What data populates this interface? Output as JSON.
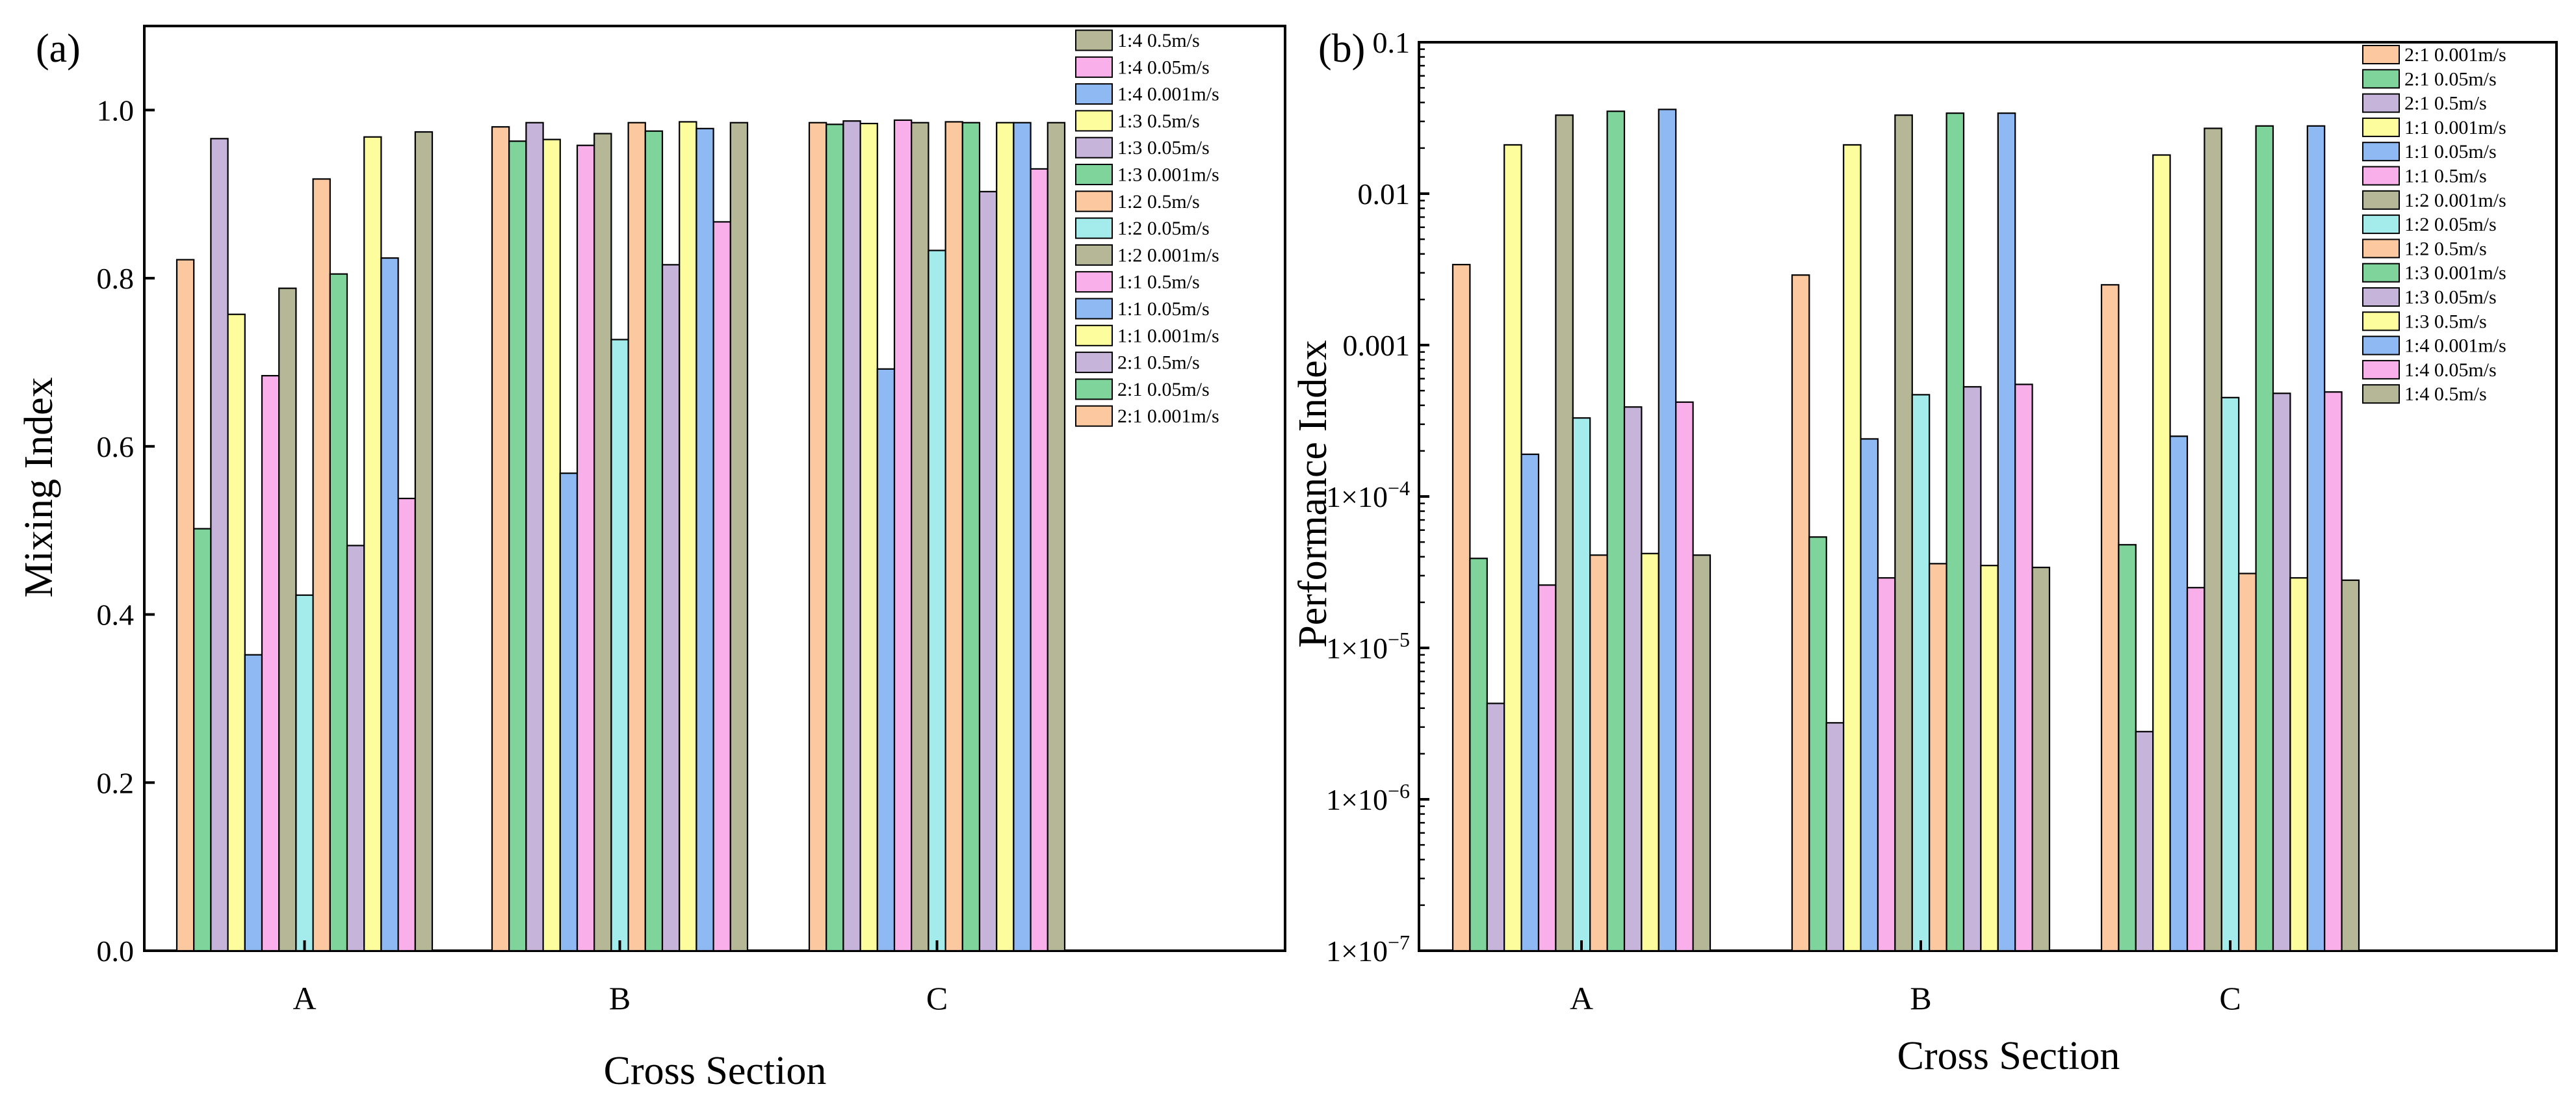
{
  "figure": {
    "panel_a_label": "(a)",
    "panel_b_label": "(b)"
  },
  "chart_data": [
    {
      "type": "bar",
      "panel": "(a)",
      "xlabel": "Cross Section",
      "ylabel": "Mixing Index",
      "scale": "linear",
      "ylim": [
        0,
        1.1
      ],
      "yticks": [
        "0.0",
        "0.2",
        "0.4",
        "0.6",
        "0.8",
        "1.0"
      ],
      "categories": [
        "A",
        "B",
        "C"
      ],
      "legend_position": "top-right",
      "series": [
        {
          "name": "2:1 0.001m/s",
          "color": "#FBC8A0",
          "values": [
            0.822,
            0.98,
            0.985
          ]
        },
        {
          "name": "2:1 0.05m/s",
          "color": "#7FD49B",
          "values": [
            0.502,
            0.963,
            0.983
          ]
        },
        {
          "name": "2:1 0.5m/s",
          "color": "#C7B4DB",
          "values": [
            0.966,
            0.985,
            0.987
          ]
        },
        {
          "name": "1:1 0.001m/s",
          "color": "#FDFD9E",
          "values": [
            0.757,
            0.965,
            0.984
          ]
        },
        {
          "name": "1:1 0.05m/s",
          "color": "#8EB9F2",
          "values": [
            0.352,
            0.568,
            0.692
          ]
        },
        {
          "name": "1:1 0.5m/s",
          "color": "#F9B0EA",
          "values": [
            0.684,
            0.958,
            0.988
          ]
        },
        {
          "name": "1:2 0.001m/s",
          "color": "#B5B797",
          "values": [
            0.788,
            0.972,
            0.985
          ]
        },
        {
          "name": "1:2 0.05m/s",
          "color": "#A4ECEC",
          "values": [
            0.423,
            0.727,
            0.833
          ]
        },
        {
          "name": "1:2 0.5m/s",
          "color": "#FBC8A0",
          "values": [
            0.918,
            0.985,
            0.986
          ]
        },
        {
          "name": "1:3 0.001m/s",
          "color": "#7FD49B",
          "values": [
            0.805,
            0.975,
            0.985
          ]
        },
        {
          "name": "1:3 0.05m/s",
          "color": "#C7B4DB",
          "values": [
            0.482,
            0.816,
            0.903
          ]
        },
        {
          "name": "1:3 0.5m/s",
          "color": "#FDFD9E",
          "values": [
            0.968,
            0.986,
            0.985
          ]
        },
        {
          "name": "1:4 0.001m/s",
          "color": "#8EB9F2",
          "values": [
            0.824,
            0.978,
            0.985
          ]
        },
        {
          "name": "1:4 0.05m/s",
          "color": "#F9B0EA",
          "values": [
            0.538,
            0.867,
            0.93
          ]
        },
        {
          "name": "1:4 0.5m/s",
          "color": "#B5B797",
          "values": [
            0.974,
            0.985,
            0.985
          ]
        }
      ],
      "legend_order": [
        "1:4 0.5m/s",
        "1:4 0.05m/s",
        "1:4 0.001m/s",
        "1:3 0.5m/s",
        "1:3 0.05m/s",
        "1:3 0.001m/s",
        "1:2 0.5m/s",
        "1:2 0.05m/s",
        "1:2 0.001m/s",
        "1:1 0.5m/s",
        "1:1 0.05m/s",
        "1:1 0.001m/s",
        "2:1 0.5m/s",
        "2:1 0.05m/s",
        "2:1 0.001m/s"
      ]
    },
    {
      "type": "bar",
      "panel": "(b)",
      "xlabel": "Cross Section",
      "ylabel": "Performance Index",
      "scale": "log",
      "ylim": [
        1e-07,
        0.1
      ],
      "yticks": [
        {
          "value": 1e-07,
          "label": "1×10",
          "exp": "−7"
        },
        {
          "value": 1e-06,
          "label": "1×10",
          "exp": "−6"
        },
        {
          "value": 1e-05,
          "label": "1×10",
          "exp": "−5"
        },
        {
          "value": 0.0001,
          "label": "1×10",
          "exp": "−4"
        },
        {
          "value": 0.001,
          "label": "0.001",
          "exp": ""
        },
        {
          "value": 0.01,
          "label": "0.01",
          "exp": ""
        },
        {
          "value": 0.1,
          "label": "0.1",
          "exp": ""
        }
      ],
      "categories": [
        "A",
        "B",
        "C"
      ],
      "legend_position": "top-right",
      "series": [
        {
          "name": "2:1 0.001m/s",
          "color": "#FBC8A0",
          "values": [
            0.0034,
            0.0029,
            0.0025
          ]
        },
        {
          "name": "2:1 0.05m/s",
          "color": "#7FD49B",
          "values": [
            3.9e-05,
            5.4e-05,
            4.8e-05
          ]
        },
        {
          "name": "2:1 0.5m/s",
          "color": "#C7B4DB",
          "values": [
            4.3e-06,
            3.2e-06,
            2.8e-06
          ]
        },
        {
          "name": "1:1 0.001m/s",
          "color": "#FDFD9E",
          "values": [
            0.021,
            0.021,
            0.018
          ]
        },
        {
          "name": "1:1 0.05m/s",
          "color": "#8EB9F2",
          "values": [
            0.00019,
            0.00024,
            0.00025
          ]
        },
        {
          "name": "1:1 0.5m/s",
          "color": "#F9B0EA",
          "values": [
            2.6e-05,
            2.9e-05,
            2.5e-05
          ]
        },
        {
          "name": "1:2 0.001m/s",
          "color": "#B5B797",
          "values": [
            0.033,
            0.033,
            0.027
          ]
        },
        {
          "name": "1:2 0.05m/s",
          "color": "#A4ECEC",
          "values": [
            0.00033,
            0.00047,
            0.00045
          ]
        },
        {
          "name": "1:2 0.5m/s",
          "color": "#FBC8A0",
          "values": [
            4.1e-05,
            3.6e-05,
            3.1e-05
          ]
        },
        {
          "name": "1:3 0.001m/s",
          "color": "#7FD49B",
          "values": [
            0.035,
            0.034,
            0.028
          ]
        },
        {
          "name": "1:3 0.05m/s",
          "color": "#C7B4DB",
          "values": [
            0.00039,
            0.00053,
            0.00048
          ]
        },
        {
          "name": "1:3 0.5m/s",
          "color": "#FDFD9E",
          "values": [
            4.2e-05,
            3.5e-05,
            2.9e-05
          ]
        },
        {
          "name": "1:4 0.001m/s",
          "color": "#8EB9F2",
          "values": [
            0.036,
            0.034,
            0.028
          ]
        },
        {
          "name": "1:4 0.05m/s",
          "color": "#F9B0EA",
          "values": [
            0.00042,
            0.00055,
            0.00049
          ]
        },
        {
          "name": "1:4 0.5m/s",
          "color": "#B5B797",
          "values": [
            4.1e-05,
            3.4e-05,
            2.8e-05
          ]
        }
      ],
      "legend_order": [
        "2:1 0.001m/s",
        "2:1 0.05m/s",
        "2:1 0.5m/s",
        "1:1 0.001m/s",
        "1:1 0.05m/s",
        "1:1 0.5m/s",
        "1:2 0.001m/s",
        "1:2 0.05m/s",
        "1:2 0.5m/s",
        "1:3 0.001m/s",
        "1:3 0.05m/s",
        "1:3 0.5m/s",
        "1:4 0.001m/s",
        "1:4 0.05m/s",
        "1:4 0.5m/s"
      ]
    }
  ]
}
